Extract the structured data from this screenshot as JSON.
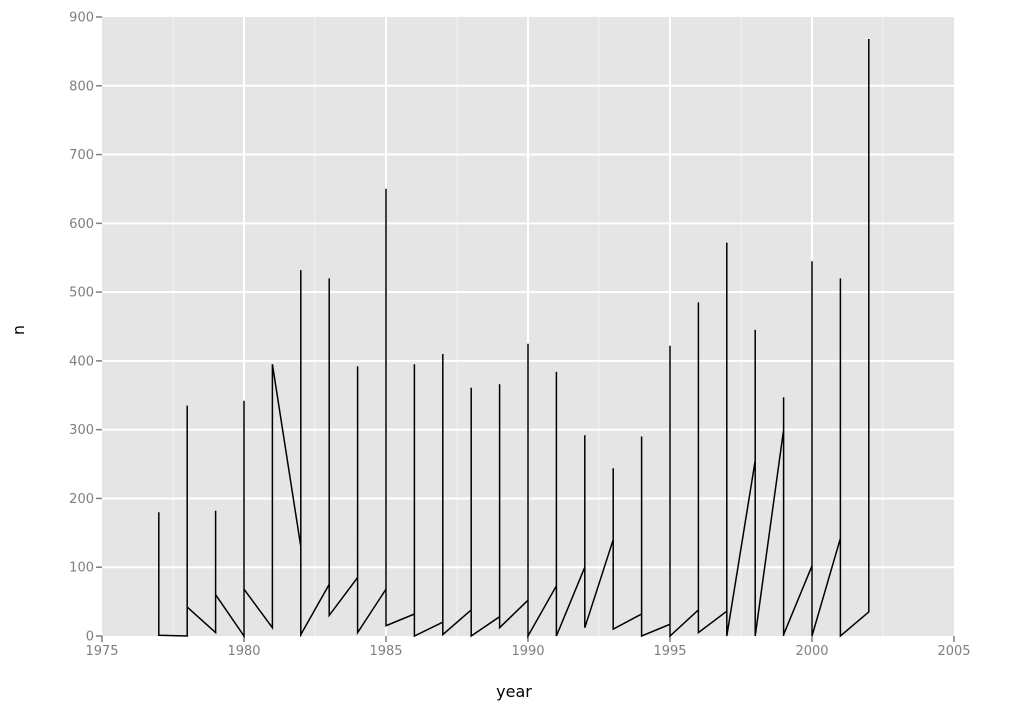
{
  "chart_data": {
    "type": "line",
    "title": "",
    "xlabel": "year",
    "ylabel": "n",
    "xlim": [
      1975,
      2005
    ],
    "ylim": [
      0,
      900
    ],
    "x_ticks": [
      1975,
      1980,
      1985,
      1990,
      1995,
      2000,
      2005
    ],
    "y_ticks": [
      0,
      100,
      200,
      300,
      400,
      500,
      600,
      700,
      800,
      900
    ],
    "x_tick_labels": [
      "1975",
      "1980",
      "1985",
      "1990",
      "1995",
      "2000",
      "2005"
    ],
    "y_tick_labels": [
      "0",
      "100",
      "200",
      "300",
      "400",
      "500",
      "600",
      "700",
      "800",
      "900"
    ],
    "grid": true,
    "legend": "none",
    "colors": {
      "panel": "#e5e5e5",
      "grid_major": "#ffffff",
      "grid_minor": "#f2f2f2",
      "line": "#000000",
      "tick": "#7f7f7f"
    },
    "series": [
      {
        "x": [
          1977,
          1977,
          1977,
          1977,
          1977,
          1978,
          1978,
          1978,
          1978,
          1979,
          1979,
          1979,
          1979,
          1979,
          1980,
          1980,
          1980,
          1980,
          1981,
          1981,
          1981,
          1981,
          1982,
          1982,
          1982,
          1982,
          1983,
          1983,
          1983,
          1983,
          1984,
          1984,
          1984,
          1984,
          1985,
          1985,
          1985,
          1985,
          1986,
          1986,
          1986,
          1986,
          1987,
          1987,
          1987,
          1987,
          1988,
          1988,
          1988,
          1988,
          1989,
          1989,
          1989,
          1989,
          1990,
          1990,
          1990,
          1990,
          1991,
          1991,
          1991,
          1991,
          1992,
          1992,
          1992,
          1992,
          1993,
          1993,
          1993,
          1993,
          1994,
          1994,
          1994,
          1994,
          1995,
          1995,
          1995,
          1995,
          1996,
          1996,
          1996,
          1996,
          1997,
          1997,
          1997,
          1997,
          1998,
          1998,
          1998,
          1998,
          1999,
          1999,
          1999,
          1999,
          2000,
          2000,
          2000,
          2000,
          2001,
          2001,
          2001,
          2001,
          2002,
          2002,
          2002
        ],
        "y": [
          30,
          3,
          180,
          15,
          1,
          0,
          335,
          2,
          42,
          5,
          182,
          12,
          62,
          60,
          0,
          342,
          3,
          68,
          12,
          393,
          15,
          395,
          130,
          0,
          532,
          2,
          75,
          40,
          520,
          30,
          85,
          55,
          392,
          5,
          68,
          70,
          650,
          15,
          32,
          22,
          395,
          0,
          20,
          160,
          410,
          2,
          38,
          10,
          361,
          0,
          28,
          22,
          366,
          12,
          52,
          8,
          425,
          0,
          73,
          55,
          384,
          0,
          100,
          38,
          292,
          12,
          140,
          95,
          244,
          10,
          32,
          37,
          290,
          0,
          17,
          5,
          422,
          0,
          38,
          88,
          485,
          5,
          36,
          2,
          572,
          0,
          255,
          7,
          445,
          0,
          300,
          0,
          347,
          2,
          102,
          5,
          545,
          0,
          142,
          10,
          520,
          0,
          35,
          375,
          868
        ]
      }
    ]
  }
}
